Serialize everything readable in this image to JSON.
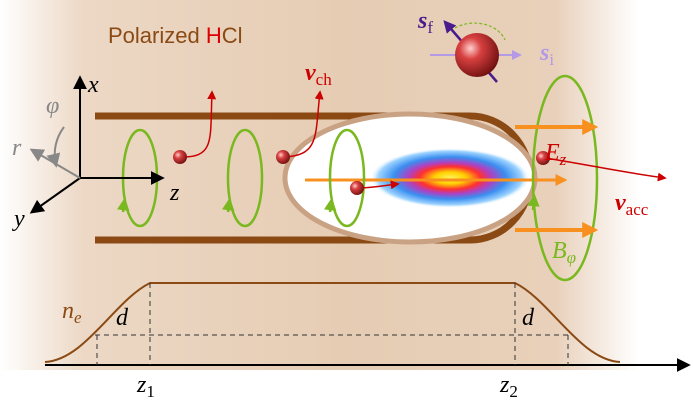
{
  "title": {
    "prefix": "Polarized",
    "h": "H",
    "cl": "Cl"
  },
  "spin": {
    "final": {
      "symbol": "s",
      "sub": "f"
    },
    "initial": {
      "symbol": "s",
      "sub": "i"
    }
  },
  "coordinates": {
    "x": "x",
    "phi": "φ",
    "r": "r",
    "z": "z",
    "y": "y"
  },
  "vectors": {
    "v_ch": {
      "symbol": "v",
      "sub": "ch"
    },
    "E_z": {
      "symbol": "E",
      "sub": "z"
    },
    "v_acc": {
      "symbol": "v",
      "sub": "acc"
    },
    "B_phi": {
      "symbol": "B",
      "sub": "φ"
    }
  },
  "profile": {
    "density": {
      "symbol": "n",
      "sub": "e"
    },
    "d_left": "d",
    "d_right": "d",
    "z1": {
      "symbol": "z",
      "sub": "1"
    },
    "z2": {
      "symbol": "z",
      "sub": "2"
    }
  }
}
